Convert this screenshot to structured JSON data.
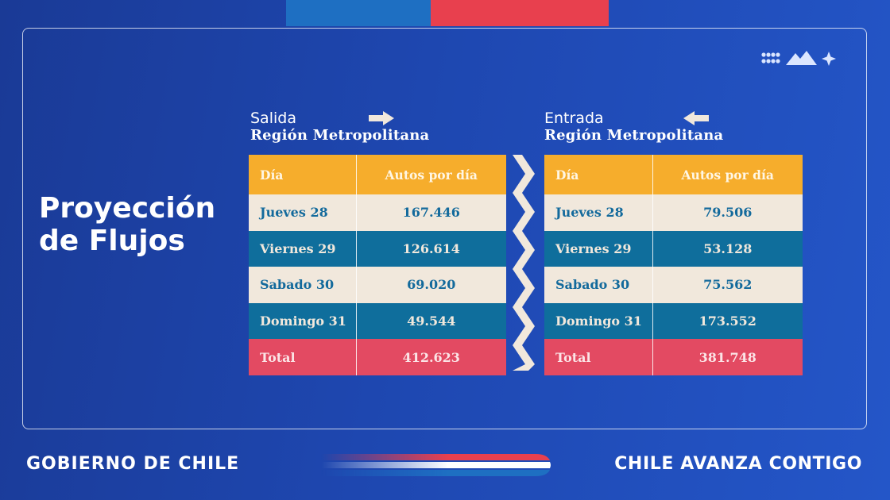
{
  "title": {
    "line1": "Proyección",
    "line2": "de Flujos"
  },
  "colors": {
    "header_row": "#f6ad2c",
    "light_row": "#f1e8dc",
    "dark_row": "#0f6e9c",
    "total_row": "#e34a62",
    "accent_blue": "#1e6fc2",
    "accent_red": "#e8404e"
  },
  "salida": {
    "label": "Salida",
    "region": "Región Metropolitana",
    "arrow_icon": "arrow-right-icon",
    "columns": [
      "Día",
      "Autos por día"
    ],
    "rows": [
      {
        "day": "Jueves 28",
        "value": "167.446"
      },
      {
        "day": "Viernes 29",
        "value": "126.614"
      },
      {
        "day": "Sabado 30",
        "value": "69.020"
      },
      {
        "day": "Domingo 31",
        "value": "49.544"
      }
    ],
    "total": {
      "label": "Total",
      "value": "412.623"
    }
  },
  "entrada": {
    "label": "Entrada",
    "region": "Región Metropolitana",
    "arrow_icon": "arrow-left-icon",
    "columns": [
      "Día",
      "Autos por día"
    ],
    "rows": [
      {
        "day": "Jueves 28",
        "value": "79.506"
      },
      {
        "day": "Viernes 29",
        "value": "53.128"
      },
      {
        "day": "Sabado 30",
        "value": "75.562"
      },
      {
        "day": "Domingo 31",
        "value": "173.552"
      }
    ],
    "total": {
      "label": "Total",
      "value": "381.748"
    }
  },
  "footer": {
    "left": "GOBIERNO DE CHILE",
    "right": "CHILE AVANZA CONTIGO"
  }
}
